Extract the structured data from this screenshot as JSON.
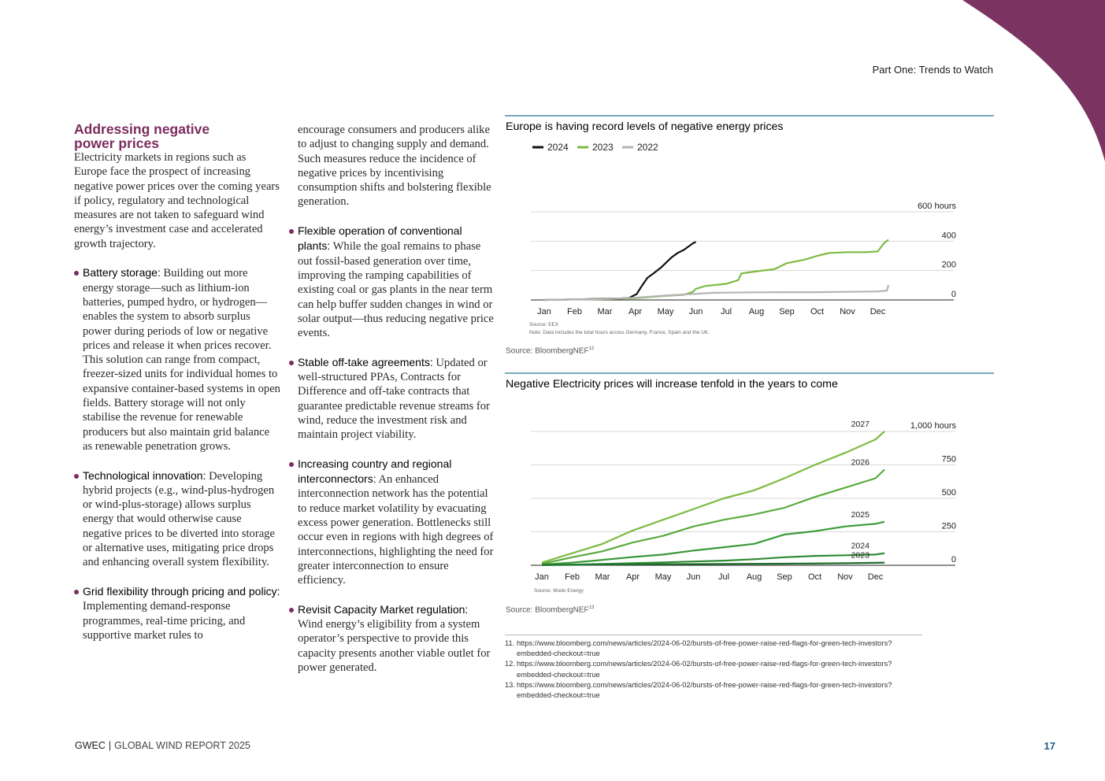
{
  "header": {
    "section_label": "Part One: Trends to Watch"
  },
  "left_column": {
    "title_line1": "Addressing negative",
    "title_line2": "power prices",
    "intro": "Electricity markets in regions such as Europe face the prospect of increasing negative power prices over the coming years if policy, regulatory and technological measures are not taken to safeguard wind energy’s investment case and accelerated growth trajectory.",
    "bullets": [
      {
        "head": "Battery storage:",
        "text": " Building out more energy storage—such as lithium-ion batteries, pumped hydro, or hydrogen—enables the system to absorb surplus power during periods of low or negative prices and release it when prices recover. This solution can range from compact, freezer-sized units for individual homes to expansive container-based systems in open fields. Battery storage will not only stabilise the revenue for renewable producers but also maintain grid balance as renewable penetration grows."
      },
      {
        "head": "Technological innovation:",
        "text": " Developing hybrid projects (e.g., wind-plus-hydrogen or wind-plus-storage) allows surplus energy that would otherwise cause negative prices to be diverted into storage or alternative uses, mitigating price drops and enhancing overall system flexibility."
      },
      {
        "head": "Grid flexibility through pricing and policy:",
        "text": " Implementing demand-response programmes, real-time pricing, and supportive market rules to"
      }
    ]
  },
  "right_column": {
    "continuation": "encourage consumers and producers alike to adjust to changing supply and demand. Such measures reduce the incidence of negative prices by incentivising consumption shifts and bolstering flexible generation.",
    "bullets": [
      {
        "head": "Flexible operation of conventional plants:",
        "text": " While the goal remains to phase out fossil-based generation over time, improving the ramping capabilities of existing coal or gas plants in the near term can help buffer sudden changes in wind or solar output—thus reducing negative price events."
      },
      {
        "head": "Stable off-take agreements:",
        "text": " Updated or well-structured PPAs, Contracts for Difference and off-take contracts that guarantee predictable revenue streams for wind, reduce the investment risk and maintain project viability."
      },
      {
        "head": "Increasing country and regional interconnectors:",
        "text": " An enhanced interconnection network has the potential to reduce market volatility by evacuating excess power generation.  Bottlenecks still occur even in regions with high degrees of interconnections, highlighting the need for greater interconnection to ensure efficiency."
      },
      {
        "head": "Revisit Capacity Market regulation:",
        "text": " Wind energy’s eligibility from a system operator’s perspective to provide this capacity presents another viable outlet for power generated."
      }
    ]
  },
  "chart_data": [
    {
      "type": "line",
      "title": "Europe is having record levels of negative energy prices",
      "x": [
        "Jan",
        "Feb",
        "Mar",
        "Apr",
        "May",
        "Jun",
        "Jul",
        "Aug",
        "Sep",
        "Oct",
        "Nov",
        "Dec"
      ],
      "y_ticks": [
        "0",
        "200",
        "400",
        "600 hours"
      ],
      "ylim": [
        0,
        600
      ],
      "grid": true,
      "legend_position": "top-left",
      "series": [
        {
          "name": "2024",
          "color": "#111111",
          "points": [
            [
              0,
              0
            ],
            [
              0.5,
              2
            ],
            [
              1,
              4
            ],
            [
              1.5,
              6
            ],
            [
              2,
              8
            ],
            [
              2.5,
              10
            ],
            [
              2.8,
              14
            ],
            [
              3.05,
              40
            ],
            [
              3.2,
              90
            ],
            [
              3.4,
              150
            ],
            [
              3.6,
              180
            ],
            [
              3.85,
              220
            ],
            [
              4,
              250
            ],
            [
              4.2,
              290
            ],
            [
              4.4,
              320
            ],
            [
              4.6,
              340
            ],
            [
              4.9,
              385
            ],
            [
              5,
              395
            ]
          ]
        },
        {
          "name": "2023",
          "color": "#7dbb42",
          "points": [
            [
              0,
              0
            ],
            [
              1,
              3
            ],
            [
              2,
              6
            ],
            [
              3,
              12
            ],
            [
              4,
              28
            ],
            [
              4.6,
              35
            ],
            [
              4.9,
              55
            ],
            [
              5,
              75
            ],
            [
              5.3,
              95
            ],
            [
              6,
              110
            ],
            [
              6.4,
              135
            ],
            [
              6.5,
              180
            ],
            [
              7,
              195
            ],
            [
              7.6,
              210
            ],
            [
              8,
              250
            ],
            [
              8.6,
              275
            ],
            [
              9,
              300
            ],
            [
              9.4,
              320
            ],
            [
              10,
              325
            ],
            [
              10.6,
              325
            ],
            [
              11,
              330
            ],
            [
              11.2,
              385
            ],
            [
              11.35,
              410
            ]
          ]
        },
        {
          "name": "2022",
          "color": "#b4b4b4",
          "points": [
            [
              0,
              0
            ],
            [
              1,
              3
            ],
            [
              2,
              6
            ],
            [
              3,
              15
            ],
            [
              4,
              30
            ],
            [
              5,
              42
            ],
            [
              5.5,
              48
            ],
            [
              6,
              50
            ],
            [
              7,
              52
            ],
            [
              8,
              53
            ],
            [
              9,
              53
            ],
            [
              10,
              55
            ],
            [
              11,
              58
            ],
            [
              11.3,
              64
            ],
            [
              11.35,
              100
            ]
          ]
        }
      ],
      "source_note": "Source: EEX",
      "note": "Note: Data includes the total hours across Germany, France, Spain and the UK.",
      "source": "Source: BloombergNEF",
      "source_ref": "12"
    },
    {
      "type": "line",
      "title": "Negative Electricity prices will increase tenfold in the years to come",
      "x": [
        "Jan",
        "Feb",
        "Mar",
        "Apr",
        "May",
        "Jun",
        "Jul",
        "Aug",
        "Sep",
        "Oct",
        "Nov",
        "Dec"
      ],
      "y_ticks": [
        "0",
        "250",
        "500",
        "750",
        "1,000 hours"
      ],
      "ylim": [
        0,
        1000
      ],
      "grid": true,
      "series": [
        {
          "name": "2027",
          "color": "#7dbb42",
          "points": [
            [
              0,
              20
            ],
            [
              1,
              90
            ],
            [
              2,
              160
            ],
            [
              3,
              260
            ],
            [
              4,
              340
            ],
            [
              5,
              420
            ],
            [
              6,
              500
            ],
            [
              7,
              560
            ],
            [
              8,
              650
            ],
            [
              9,
              750
            ],
            [
              10,
              840
            ],
            [
              11,
              940
            ],
            [
              11.3,
              1000
            ]
          ]
        },
        {
          "name": "2026",
          "color": "#5aab3f",
          "points": [
            [
              0,
              10
            ],
            [
              1,
              60
            ],
            [
              2,
              105
            ],
            [
              3,
              170
            ],
            [
              4,
              220
            ],
            [
              5,
              290
            ],
            [
              6,
              340
            ],
            [
              7,
              380
            ],
            [
              8,
              430
            ],
            [
              9,
              510
            ],
            [
              10,
              580
            ],
            [
              11,
              650
            ],
            [
              11.3,
              715
            ]
          ]
        },
        {
          "name": "2025",
          "color": "#3a9a38",
          "points": [
            [
              0,
              5
            ],
            [
              1,
              20
            ],
            [
              2,
              40
            ],
            [
              3,
              62
            ],
            [
              4,
              80
            ],
            [
              5,
              110
            ],
            [
              6,
              135
            ],
            [
              7,
              160
            ],
            [
              8,
              230
            ],
            [
              9,
              255
            ],
            [
              10,
              290
            ],
            [
              11,
              310
            ],
            [
              11.3,
              325
            ]
          ]
        },
        {
          "name": "2024",
          "color": "#2e8a33",
          "points": [
            [
              0,
              2
            ],
            [
              1,
              5
            ],
            [
              2,
              10
            ],
            [
              3,
              15
            ],
            [
              4,
              22
            ],
            [
              5,
              28
            ],
            [
              6,
              35
            ],
            [
              7,
              45
            ],
            [
              8,
              60
            ],
            [
              9,
              70
            ],
            [
              10,
              75
            ],
            [
              11,
              80
            ],
            [
              11.3,
              90
            ]
          ]
        },
        {
          "name": "2023",
          "color": "#1f6e2c",
          "points": [
            [
              0,
              2
            ],
            [
              2,
              5
            ],
            [
              4,
              8
            ],
            [
              6,
              10
            ],
            [
              8,
              12
            ],
            [
              10,
              15
            ],
            [
              11,
              18
            ],
            [
              11.3,
              20
            ]
          ]
        }
      ],
      "source_note": "Source: Modo Energy",
      "source": "Source: BloombergNEF",
      "source_ref": "13"
    }
  ],
  "footnotes": [
    {
      "num": "11.",
      "text": "https://www.bloomberg.com/news/articles/2024-06-02/bursts-of-free-power-raise-red-flags-for-green-tech-investors?embedded-checkout=true"
    },
    {
      "num": "12.",
      "text": "https://www.bloomberg.com/news/articles/2024-06-02/bursts-of-free-power-raise-red-flags-for-green-tech-investors?embedded-checkout=true"
    },
    {
      "num": "13.",
      "text": "https://www.bloomberg.com/news/articles/2024-06-02/bursts-of-free-power-raise-red-flags-for-green-tech-investors?embedded-checkout=true"
    }
  ],
  "footer": {
    "org": "GWEC",
    "report": "GLOBAL WIND REPORT 2025",
    "page": "17"
  },
  "colors": {
    "accent": "#7b2d5e",
    "rule": "#7aa9b7",
    "page_number": "#1f5e8c"
  }
}
